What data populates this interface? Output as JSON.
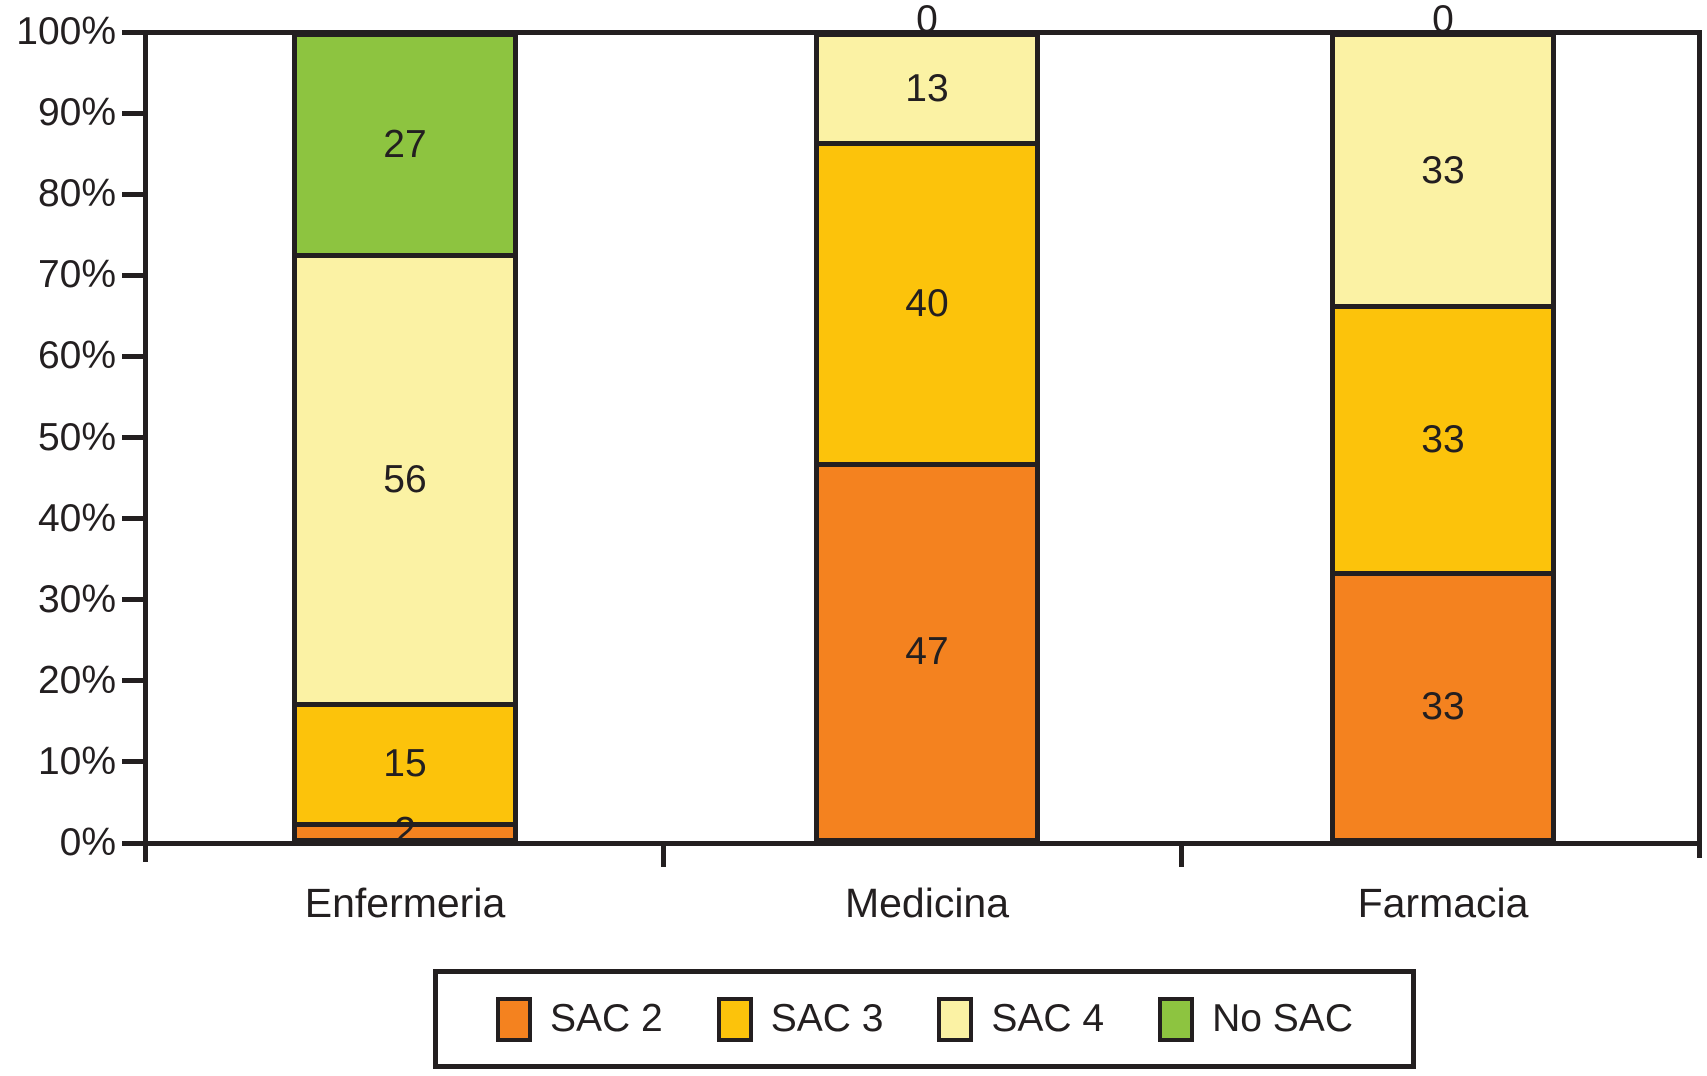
{
  "chart_data": {
    "type": "bar",
    "variant": "stacked-percent-column",
    "title": "",
    "xlabel": "",
    "ylabel": "",
    "categories": [
      "Enfermeria",
      "Medicina",
      "Farmacia"
    ],
    "series": [
      {
        "name": "SAC 2",
        "color": "#F4821F",
        "values": [
          2,
          47,
          33
        ]
      },
      {
        "name": "SAC 3",
        "color": "#FCC30B",
        "values": [
          15,
          40,
          33
        ]
      },
      {
        "name": "SAC 4",
        "color": "#FBF2A4",
        "values": [
          56,
          13,
          33
        ]
      },
      {
        "name": "No SAC",
        "color": "#8DC440",
        "values": [
          27,
          0,
          0
        ]
      }
    ],
    "data_labels_shown": true,
    "zero_labels_above_bars": [
      {
        "category": "Medicina",
        "series": "No SAC",
        "label": "0"
      },
      {
        "category": "Farmacia",
        "series": "No SAC",
        "label": "0"
      }
    ],
    "y_axis": {
      "tick_labels": [
        "100%",
        "90%",
        "80%",
        "70%",
        "60%",
        "50%",
        "40%",
        "30%",
        "20%",
        "10%",
        "0%"
      ],
      "ylim": [
        0,
        100
      ]
    },
    "grid": false,
    "legend_position": "bottom",
    "line_color": "#231F20",
    "background_color": "#FFFFFF"
  }
}
